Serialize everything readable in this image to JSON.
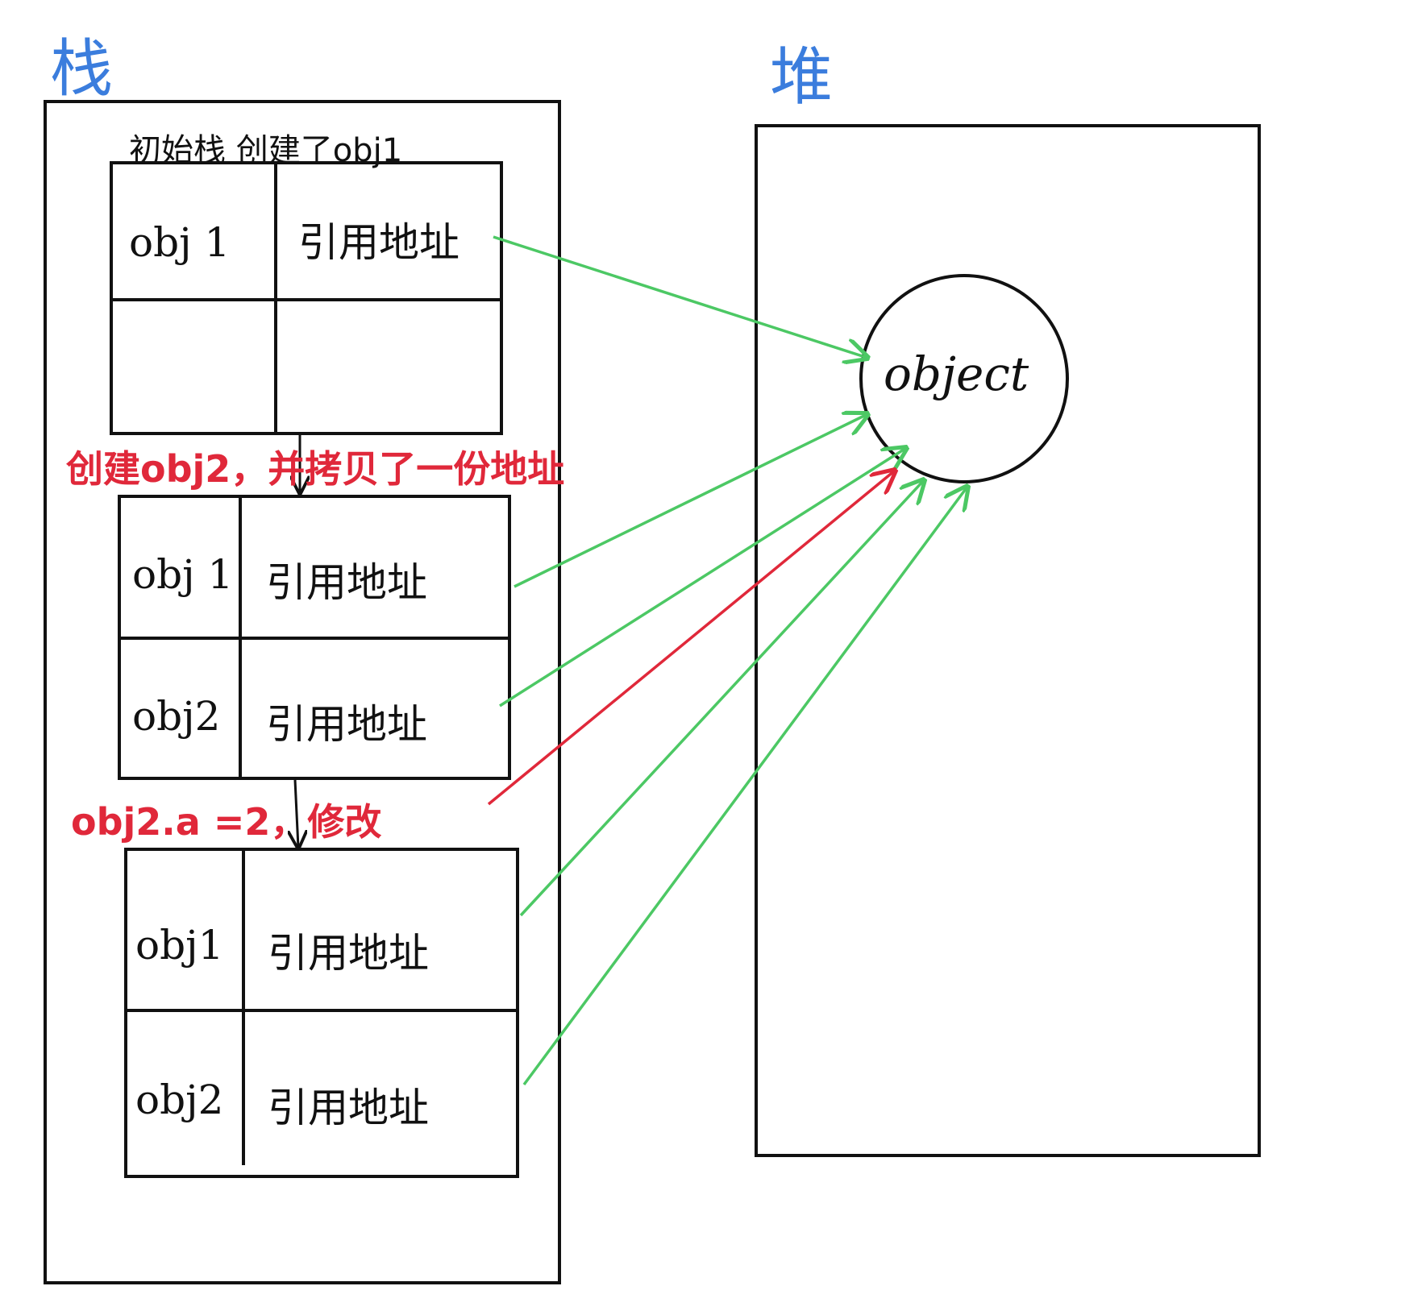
{
  "stack_title": "栈",
  "heap_title": "堆",
  "initial_note": "初始栈 创建了obj1",
  "create_note": "创建obj2，并拷贝了一份地址",
  "modify_note": "obj2.a =2，修改",
  "heap_object_label": "object",
  "frames": [
    {
      "rows": [
        {
          "name": "obj 1",
          "value": "引用地址"
        },
        {
          "name": "",
          "value": ""
        }
      ]
    },
    {
      "rows": [
        {
          "name": "obj 1",
          "value": "引用地址"
        },
        {
          "name": "obj2",
          "value": "引用地址"
        }
      ]
    },
    {
      "rows": [
        {
          "name": "obj1",
          "value": "引用地址"
        },
        {
          "name": "obj2",
          "value": "引用地址"
        }
      ]
    }
  ],
  "colors": {
    "title": "#3b7ddd",
    "note_red": "#e0283a",
    "pointer_green": "#4cc864",
    "pointer_red": "#e0283a",
    "ink": "#111111"
  }
}
